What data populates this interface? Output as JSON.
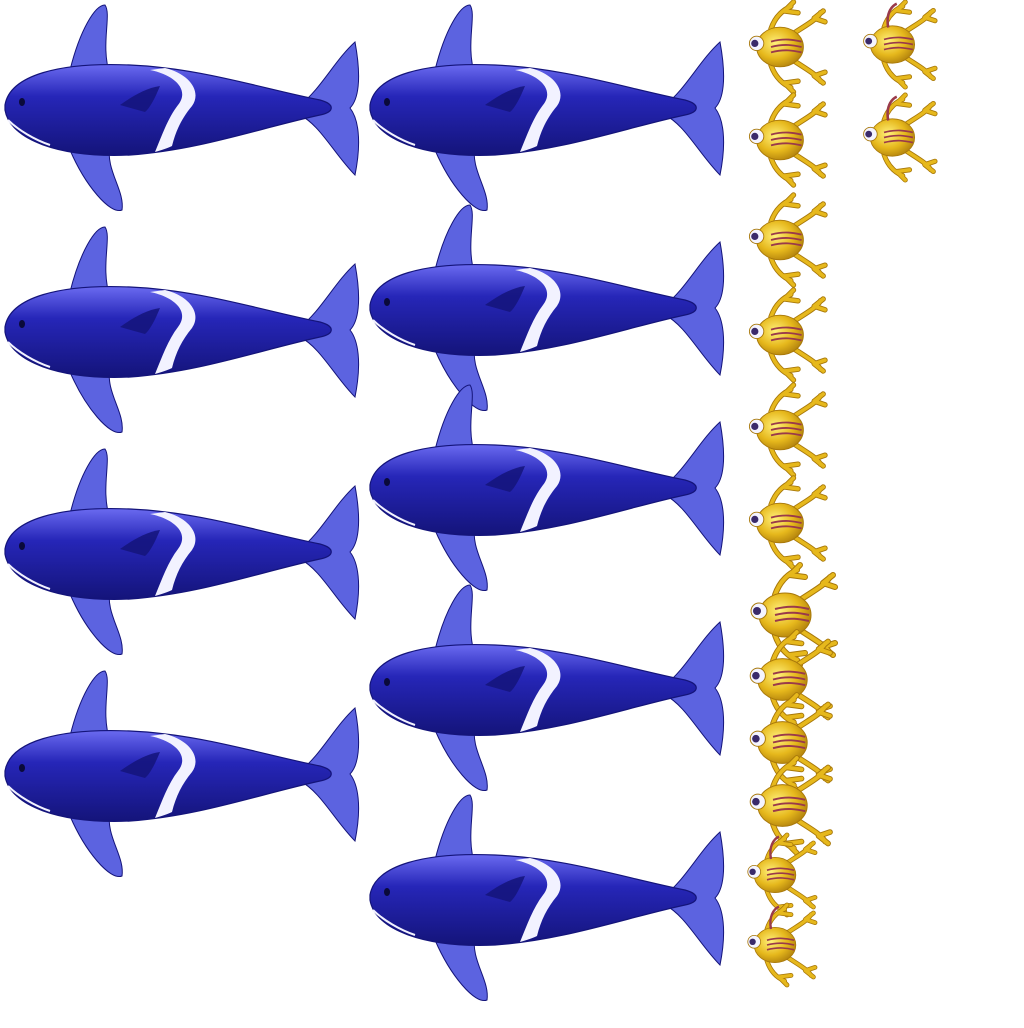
{
  "sheet": {
    "kind": "sprite-sheet",
    "background": "#ffffff",
    "sprites": [
      {
        "name": "orca-sprite",
        "icon": "orca-icon",
        "count": 9
      },
      {
        "name": "frog-sprite",
        "icon": "frog-icon",
        "count": 14
      }
    ]
  },
  "colors": {
    "orca_body": "#2626b8",
    "orca_highlight": "#6a6af0",
    "orca_dark": "#14147a",
    "orca_fin": "#5c63e0",
    "orca_stripe": "#f2f2ff",
    "frog_body": "#e6b81c",
    "frog_highlight": "#fff07a",
    "frog_dark": "#a8780a",
    "frog_stripe": "#9a3a4a",
    "frog_eye": "#f4f4ff",
    "frog_pupil": "#3a2a6a"
  }
}
